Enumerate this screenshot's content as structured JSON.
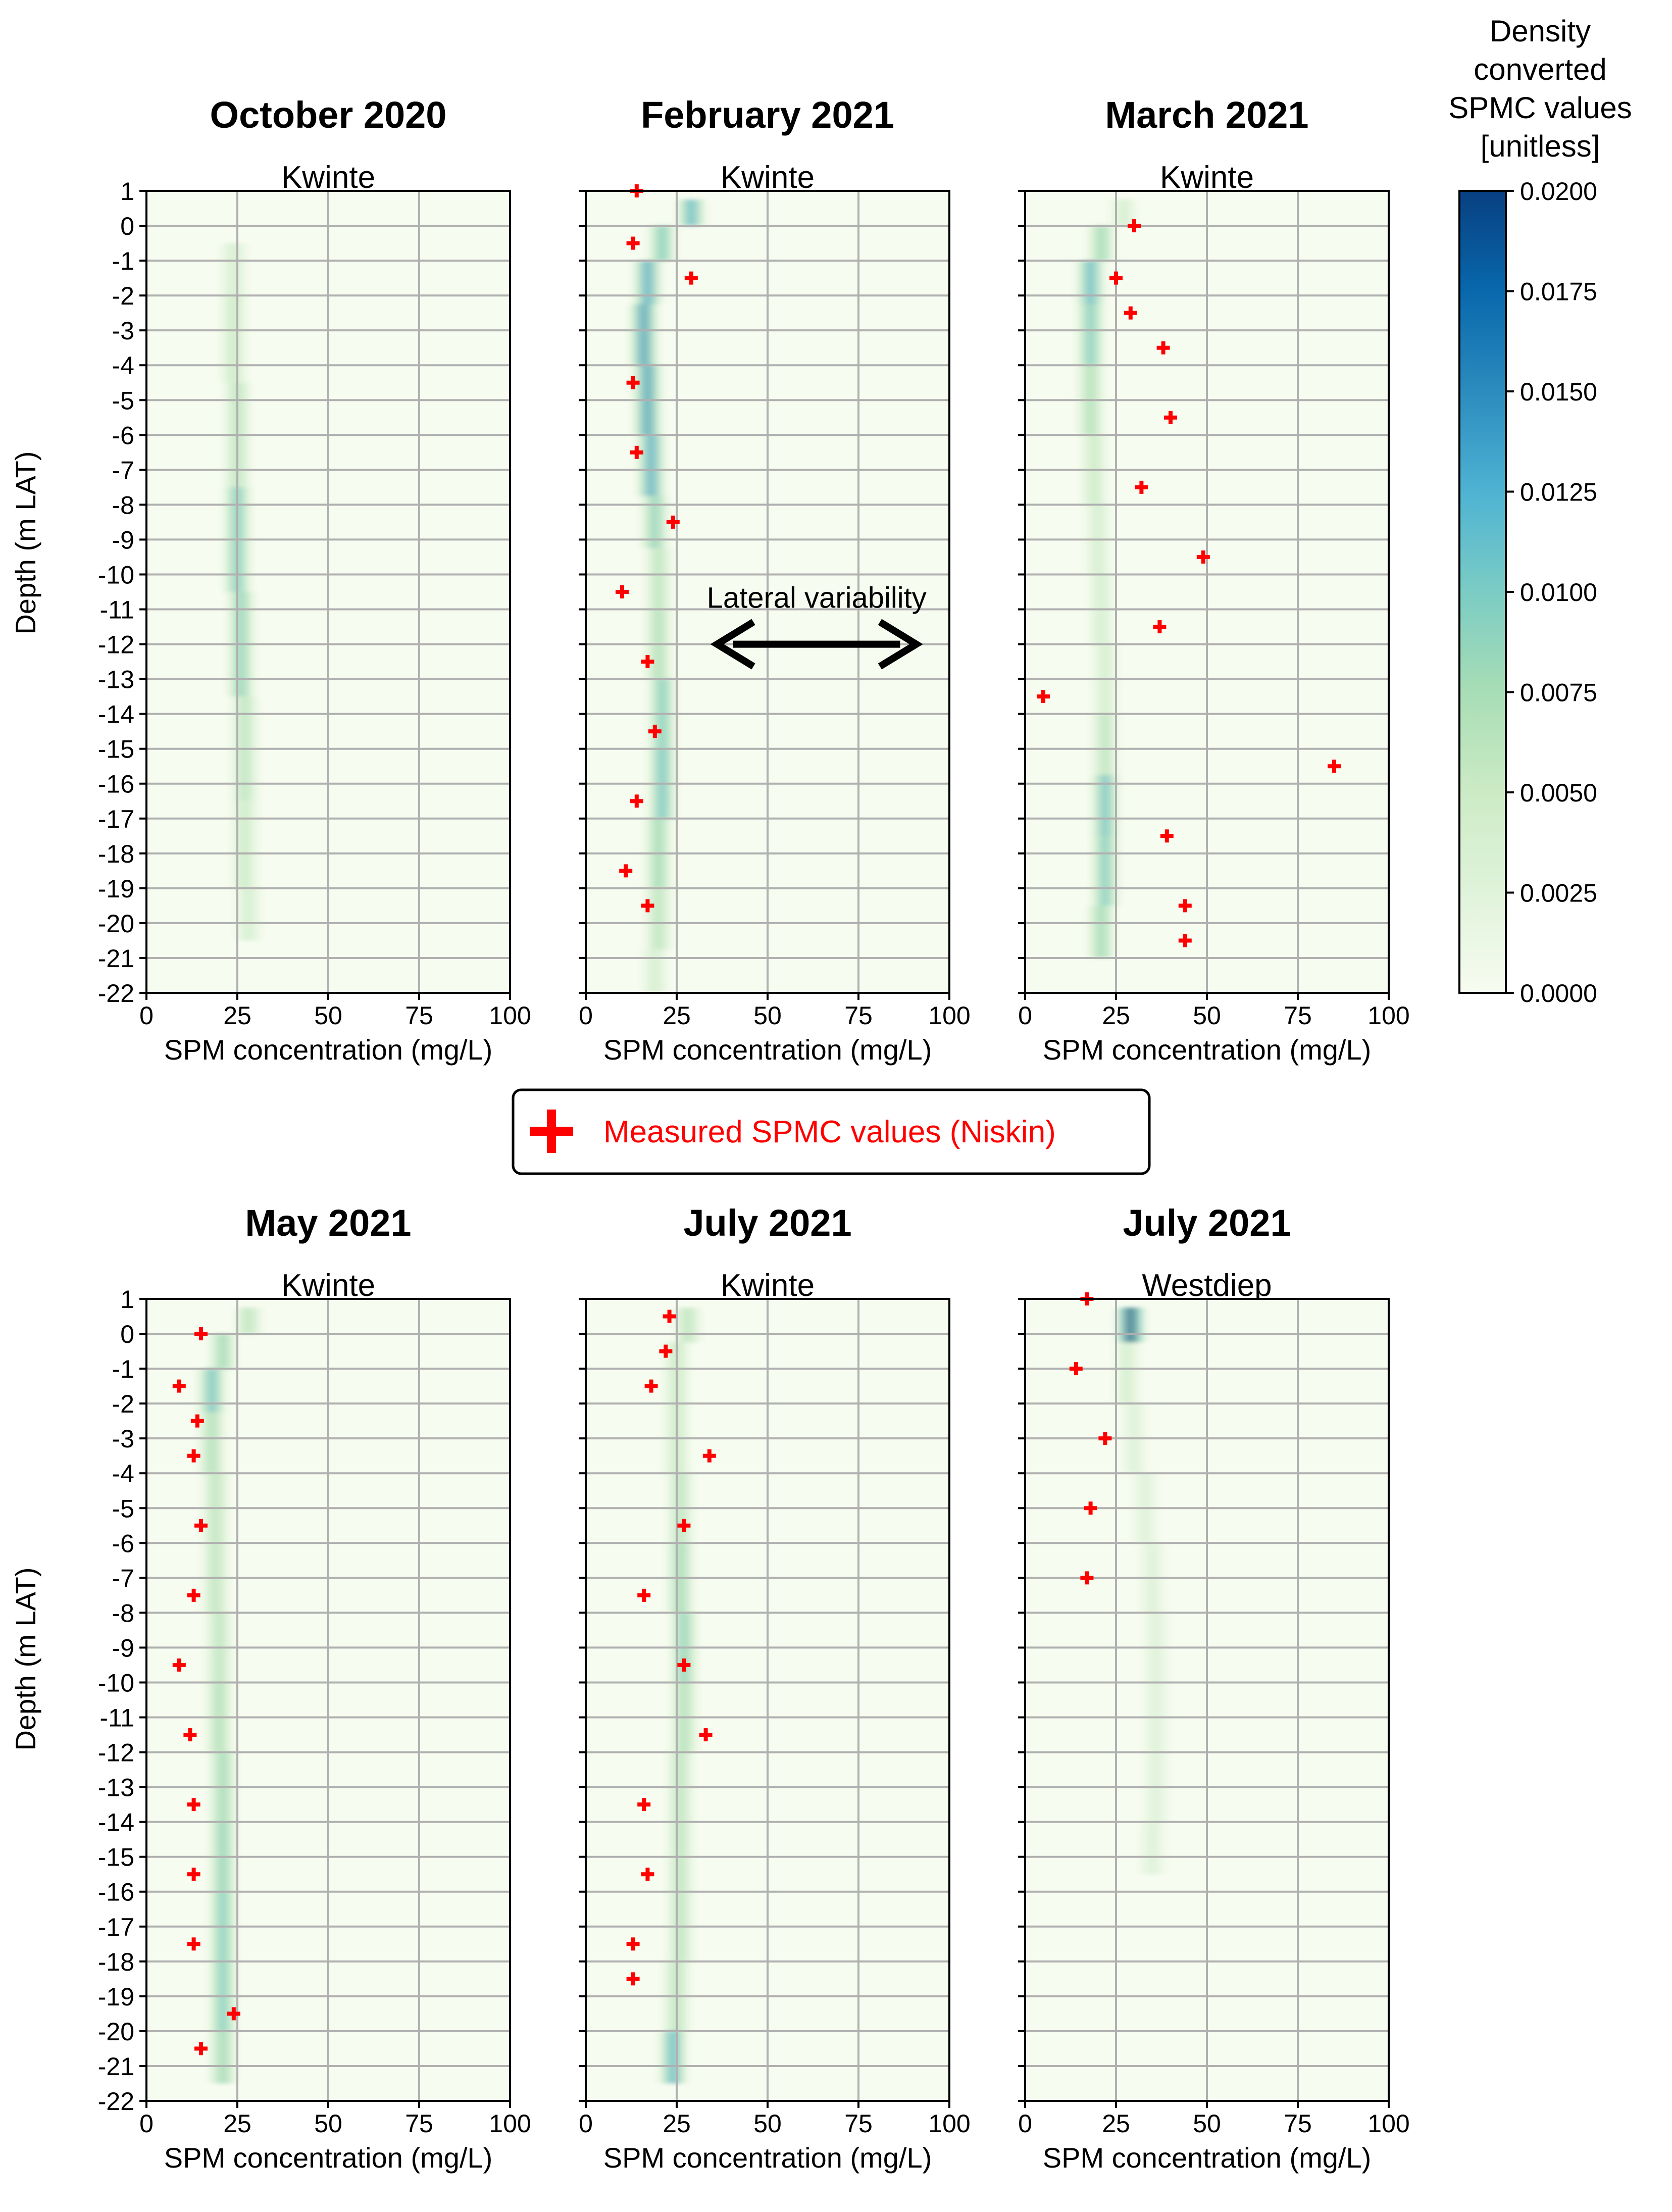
{
  "chart_data": {
    "type": "heatmap-profile",
    "xlabel": "SPM concentration (mg/L)",
    "ylabel": "Depth (m LAT)",
    "xlim": [
      0,
      100
    ],
    "ylim": [
      -22,
      1
    ],
    "xticks": [
      "0",
      "25",
      "50",
      "75",
      "100"
    ],
    "yticks": [
      "1",
      "0",
      "-1",
      "-2",
      "-3",
      "-4",
      "-5",
      "-6",
      "-7",
      "-8",
      "-9",
      "-10",
      "-11",
      "-12",
      "-13",
      "-14",
      "-15",
      "-16",
      "-17",
      "-18",
      "-19",
      "-20",
      "-21",
      "-22"
    ],
    "colorbar": {
      "title": [
        "Density",
        "converted",
        "SPMC values",
        "[unitless]"
      ],
      "range": [
        0,
        0.02
      ],
      "ticks": [
        "0.0200",
        "0.0175",
        "0.0150",
        "0.0125",
        "0.0100",
        "0.0075",
        "0.0050",
        "0.0025",
        "0.0000"
      ]
    },
    "legend": {
      "label": "Measured SPMC values (Niskin)",
      "marker": "+",
      "color": "#ff0000"
    },
    "annotation": {
      "text": "Lateral variability",
      "arrow_from_x": 35,
      "arrow_to_x": 92,
      "at_depth": -12
    },
    "panels": [
      {
        "title": "October 2020",
        "subtitle": "Kwinte",
        "profile": [
          [
            -1,
            24,
            0.004
          ],
          [
            -3,
            24,
            0.005
          ],
          [
            -6,
            25,
            0.006
          ],
          [
            -9,
            25,
            0.01
          ],
          [
            -12,
            26,
            0.009
          ],
          [
            -15,
            27,
            0.006
          ],
          [
            -18,
            27,
            0.005
          ],
          [
            -20,
            28,
            0.004
          ]
        ],
        "measured": []
      },
      {
        "title": "February 2021",
        "subtitle": "Kwinte",
        "profile": [
          [
            0.5,
            29,
            0.012
          ],
          [
            -0.5,
            21,
            0.01
          ],
          [
            -1.5,
            17,
            0.013
          ],
          [
            -3,
            16,
            0.014
          ],
          [
            -5,
            17,
            0.014
          ],
          [
            -7,
            18,
            0.013
          ],
          [
            -8.5,
            19,
            0.009
          ],
          [
            -10,
            20,
            0.006
          ],
          [
            -12,
            20,
            0.007
          ],
          [
            -14,
            21,
            0.01
          ],
          [
            -16,
            21,
            0.011
          ],
          [
            -18,
            20,
            0.008
          ],
          [
            -20,
            20,
            0.006
          ],
          [
            -21.5,
            19,
            0.004
          ]
        ],
        "measured": [
          [
            14,
            1
          ],
          [
            13,
            -0.5
          ],
          [
            29,
            -1.5
          ],
          [
            13,
            -4.5
          ],
          [
            14,
            -6.5
          ],
          [
            24,
            -8.5
          ],
          [
            10,
            -10.5
          ],
          [
            17,
            -12.5
          ],
          [
            19,
            -14.5
          ],
          [
            14,
            -16.5
          ],
          [
            11,
            -18.5
          ],
          [
            17,
            -19.5
          ]
        ]
      },
      {
        "title": "March 2021",
        "subtitle": "Kwinte",
        "profile": [
          [
            0.5,
            27,
            0.004
          ],
          [
            -0.5,
            21,
            0.008
          ],
          [
            -1.5,
            18,
            0.012
          ],
          [
            -3,
            18,
            0.01
          ],
          [
            -5,
            18,
            0.007
          ],
          [
            -7,
            19,
            0.005
          ],
          [
            -9,
            20,
            0.004
          ],
          [
            -11,
            21,
            0.004
          ],
          [
            -13,
            22,
            0.004
          ],
          [
            -15,
            22,
            0.006
          ],
          [
            -16.5,
            22,
            0.011
          ],
          [
            -18.5,
            22,
            0.01
          ],
          [
            -20.5,
            21,
            0.008
          ]
        ],
        "measured": [
          [
            30,
            0
          ],
          [
            25,
            -1.5
          ],
          [
            29,
            -2.5
          ],
          [
            38,
            -3.5
          ],
          [
            40,
            -5.5
          ],
          [
            32,
            -7.5
          ],
          [
            49,
            -9.5
          ],
          [
            37,
            -11.5
          ],
          [
            5,
            -13.5
          ],
          [
            85,
            -15.5
          ],
          [
            39,
            -17.5
          ],
          [
            44,
            -19.5
          ],
          [
            44,
            -20.5
          ]
        ]
      },
      {
        "title": "May 2021",
        "subtitle": "Kwinte",
        "profile": [
          [
            0.5,
            28,
            0.006
          ],
          [
            -0.5,
            21,
            0.008
          ],
          [
            -1.5,
            18,
            0.011
          ],
          [
            -3,
            18,
            0.007
          ],
          [
            -5,
            19,
            0.006
          ],
          [
            -7,
            19,
            0.006
          ],
          [
            -9,
            20,
            0.006
          ],
          [
            -11,
            20,
            0.007
          ],
          [
            -13,
            21,
            0.008
          ],
          [
            -15,
            21,
            0.009
          ],
          [
            -17,
            21,
            0.01
          ],
          [
            -19,
            21,
            0.01
          ],
          [
            -21,
            21,
            0.008
          ]
        ],
        "measured": [
          [
            15,
            0
          ],
          [
            9,
            -1.5
          ],
          [
            14,
            -2.5
          ],
          [
            13,
            -3.5
          ],
          [
            15,
            -5.5
          ],
          [
            13,
            -7.5
          ],
          [
            9,
            -9.5
          ],
          [
            12,
            -11.5
          ],
          [
            13,
            -13.5
          ],
          [
            13,
            -15.5
          ],
          [
            13,
            -17.5
          ],
          [
            24,
            -19.5
          ],
          [
            15,
            -20.5
          ]
        ]
      },
      {
        "title": "July 2021",
        "subtitle": "Kwinte",
        "profile": [
          [
            0.5,
            28,
            0.006
          ],
          [
            -1,
            25,
            0.005
          ],
          [
            -3,
            25,
            0.005
          ],
          [
            -5,
            26,
            0.006
          ],
          [
            -7,
            26,
            0.008
          ],
          [
            -9,
            27,
            0.009
          ],
          [
            -11,
            27,
            0.007
          ],
          [
            -13,
            26,
            0.006
          ],
          [
            -15,
            26,
            0.006
          ],
          [
            -17,
            26,
            0.006
          ],
          [
            -19,
            25,
            0.006
          ],
          [
            -21,
            24,
            0.012
          ]
        ],
        "measured": [
          [
            23,
            0.5
          ],
          [
            22,
            -0.5
          ],
          [
            18,
            -1.5
          ],
          [
            34,
            -3.5
          ],
          [
            27,
            -5.5
          ],
          [
            16,
            -7.5
          ],
          [
            27,
            -9.5
          ],
          [
            33,
            -11.5
          ],
          [
            16,
            -13.5
          ],
          [
            17,
            -15.5
          ],
          [
            13,
            -17.5
          ],
          [
            13,
            -18.5
          ]
        ]
      },
      {
        "title": "July 2021",
        "subtitle": "Westdiep",
        "profile": [
          [
            0.5,
            29,
            0.019
          ],
          [
            -1,
            28,
            0.004
          ],
          [
            -3,
            30,
            0.003
          ],
          [
            -5,
            33,
            0.003
          ],
          [
            -7,
            35,
            0.003
          ],
          [
            -9,
            36,
            0.003
          ],
          [
            -11,
            36,
            0.003
          ],
          [
            -13,
            36,
            0.003
          ],
          [
            -15,
            35,
            0.003
          ]
        ],
        "measured": [
          [
            17,
            1
          ],
          [
            14,
            -1
          ],
          [
            22,
            -3
          ],
          [
            18,
            -5
          ],
          [
            17,
            -7
          ]
        ]
      }
    ]
  }
}
